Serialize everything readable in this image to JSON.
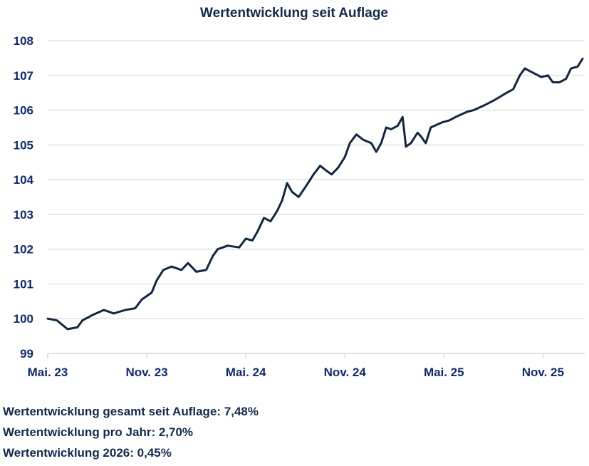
{
  "chart_data": {
    "type": "line",
    "title": "Wertentwicklung seit Auflage",
    "xlabel": "",
    "ylabel": "",
    "x_unit": "months since Mai 23",
    "xlim": [
      0,
      32.4
    ],
    "ylim": [
      99,
      108
    ],
    "y_ticks": [
      99,
      100,
      101,
      102,
      103,
      104,
      105,
      106,
      107,
      108
    ],
    "x_ticks": [
      {
        "value": 0,
        "label": "Mai. 23"
      },
      {
        "value": 6,
        "label": "Nov. 23"
      },
      {
        "value": 12,
        "label": "Mai. 24"
      },
      {
        "value": 18,
        "label": "Nov. 24"
      },
      {
        "value": 24,
        "label": "Mai. 25"
      },
      {
        "value": 30,
        "label": "Nov. 25"
      }
    ],
    "grid": true,
    "legend": "none",
    "series": [
      {
        "name": "Wertentwicklung",
        "color": "#14253f",
        "x": [
          0,
          0.56,
          1.2,
          1.8,
          2.1,
          2.7,
          3.4,
          4.0,
          4.7,
          5.3,
          5.7,
          6.3,
          6.6,
          7.0,
          7.5,
          8.1,
          8.5,
          9.0,
          9.6,
          10.0,
          10.3,
          10.9,
          11.6,
          12.0,
          12.4,
          12.7,
          13.1,
          13.5,
          13.9,
          14.2,
          14.5,
          14.8,
          15.2,
          15.7,
          16.1,
          16.5,
          16.9,
          17.2,
          17.6,
          18.0,
          18.3,
          18.7,
          19.1,
          19.6,
          19.9,
          20.2,
          20.5,
          20.8,
          21.2,
          21.5,
          21.7,
          22.0,
          22.4,
          22.6,
          22.9,
          23.2,
          23.9,
          24.3,
          24.7,
          25.4,
          25.8,
          26.5,
          27.1,
          27.8,
          28.2,
          28.6,
          28.9,
          29.3,
          29.9,
          30.3,
          30.6,
          31.0,
          31.4,
          31.7,
          32.1,
          32.4
        ],
        "values": [
          100.0,
          99.95,
          99.7,
          99.75,
          99.95,
          100.1,
          100.25,
          100.15,
          100.25,
          100.3,
          100.55,
          100.75,
          101.1,
          101.4,
          101.5,
          101.4,
          101.6,
          101.35,
          101.4,
          101.8,
          102.0,
          102.1,
          102.05,
          102.3,
          102.25,
          102.5,
          102.9,
          102.8,
          103.1,
          103.4,
          103.9,
          103.65,
          103.5,
          103.85,
          104.15,
          104.4,
          104.25,
          104.15,
          104.35,
          104.65,
          105.05,
          105.3,
          105.15,
          105.05,
          104.8,
          105.05,
          105.5,
          105.45,
          105.55,
          105.8,
          104.95,
          105.05,
          105.35,
          105.25,
          105.05,
          105.5,
          105.65,
          105.7,
          105.8,
          105.95,
          106.0,
          106.15,
          106.3,
          106.5,
          106.6,
          107.0,
          107.2,
          107.1,
          106.95,
          107.0,
          106.8,
          106.8,
          106.9,
          107.2,
          107.25,
          107.48
        ]
      }
    ]
  },
  "stats": [
    "Wertentwicklung gesamt seit Auflage: 7,48%",
    "Wertentwicklung pro Jahr: 2,70%",
    "Wertentwicklung 2026: 0,45%"
  ],
  "colors": {
    "axis_text": "#13296b",
    "title": "#13294b",
    "grid": "#dcdcdc"
  }
}
